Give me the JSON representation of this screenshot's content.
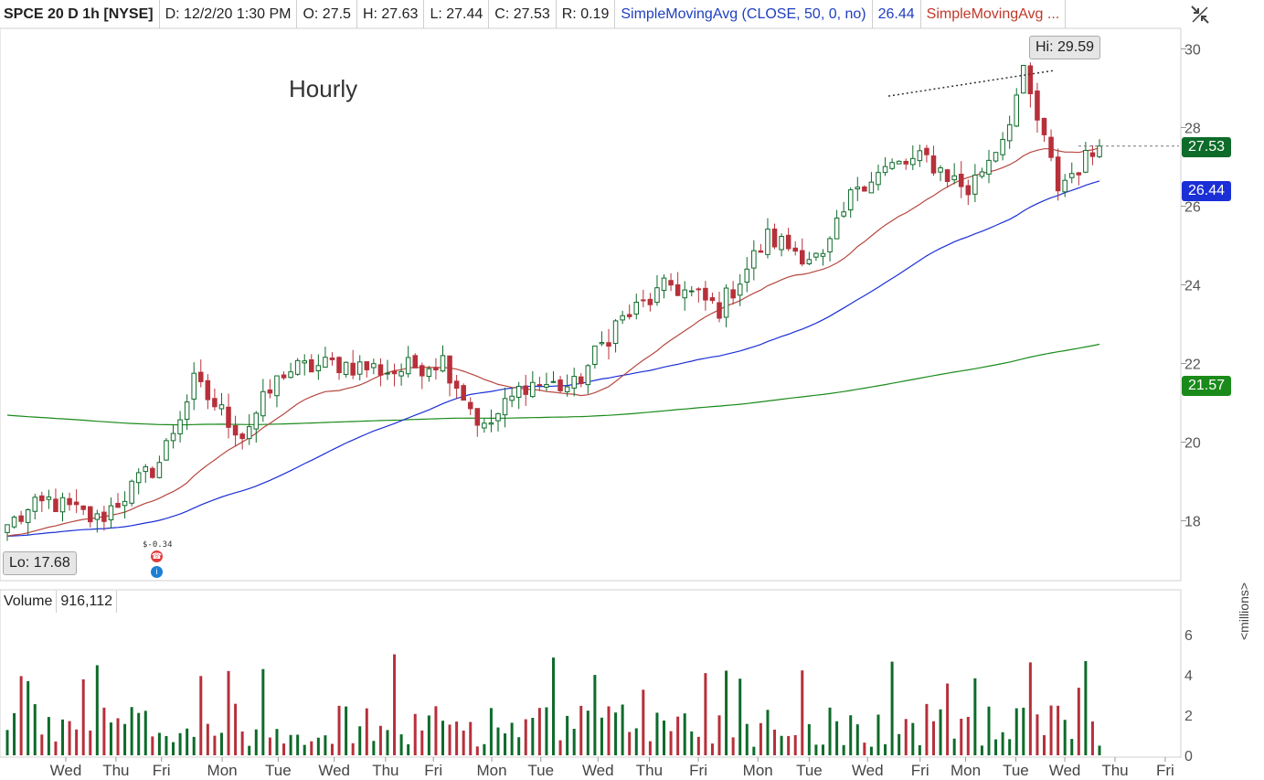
{
  "header": {
    "symbol": "SPCE 20 D 1h [NYSE]",
    "date": "D: 12/2/20 1:30 PM",
    "open": "O: 27.5",
    "high": "H: 27.63",
    "low": "L: 27.44",
    "close": "C: 27.53",
    "range": "R: 0.19",
    "sma1_label": "SimpleMovingAvg (CLOSE, 50, 0, no)",
    "sma1_value": "26.44",
    "sma2_label": "SimpleMovingAvg ..."
  },
  "annotation": "Hourly",
  "lo_label": "Lo: 17.68",
  "hi_label": "Hi: 29.59",
  "price_badge": "27.53",
  "sma50_badge": "26.44",
  "sma200_badge": "21.57",
  "earnings_label": "$-0.34",
  "volume": {
    "label": "Volume",
    "value": "916,112",
    "unit": "<millions>"
  },
  "colors": {
    "up": "#0e6b2a",
    "down": "#b7303a",
    "sma20": "#b5483f",
    "sma50": "#1b2fd6",
    "sma200": "#1a8a1a"
  },
  "icons": [
    "settings-icon",
    "earnings-icon",
    "dividend-icon"
  ],
  "chart_data": {
    "type": "candlestick",
    "price_axis": {
      "ticks": [
        18,
        20,
        22,
        24,
        26,
        28,
        30
      ],
      "ylim": [
        16.5,
        30.5
      ]
    },
    "volume_axis": {
      "ticks": [
        0,
        2,
        4,
        6
      ],
      "ylim": [
        0,
        7
      ]
    },
    "x_ticks": [
      "Wed",
      "Thu",
      "Fri",
      "Mon",
      "Tue",
      "Wed",
      "Thu",
      "Fri",
      "Mon",
      "Tue",
      "Wed",
      "Thu",
      "Fri",
      "Mon",
      "Tue",
      "Wed",
      "Fri",
      "Mon",
      "Tue",
      "Wed",
      "Thu",
      "Fri"
    ],
    "x_tick_pos": [
      5.4,
      9.7,
      13.6,
      18.8,
      23.6,
      28.4,
      32.8,
      36.9,
      41.9,
      46.1,
      51.0,
      55.4,
      59.6,
      64.7,
      69.1,
      74.1,
      78.6,
      82.5,
      86.8,
      91.0,
      95.3,
      99.6
    ],
    "anchors": [
      {
        "i": 0,
        "close": 17.9
      },
      {
        "i": 6,
        "close": 18.5
      },
      {
        "i": 13,
        "close": 18.0
      },
      {
        "i": 22,
        "close": 19.5
      },
      {
        "i": 27,
        "close": 21.5
      },
      {
        "i": 34,
        "close": 20.2
      },
      {
        "i": 40,
        "close": 21.8
      },
      {
        "i": 48,
        "close": 22.0
      },
      {
        "i": 56,
        "close": 21.8
      },
      {
        "i": 63,
        "close": 22.1
      },
      {
        "i": 69,
        "close": 20.3
      },
      {
        "i": 75,
        "close": 21.5
      },
      {
        "i": 82,
        "close": 21.4
      },
      {
        "i": 88,
        "close": 23.0
      },
      {
        "i": 96,
        "close": 24.0
      },
      {
        "i": 103,
        "close": 23.4
      },
      {
        "i": 110,
        "close": 25.2
      },
      {
        "i": 118,
        "close": 24.6
      },
      {
        "i": 123,
        "close": 26.6
      },
      {
        "i": 128,
        "close": 27.0
      },
      {
        "i": 133,
        "close": 27.2
      },
      {
        "i": 139,
        "close": 26.4
      },
      {
        "i": 144,
        "close": 27.8
      },
      {
        "i": 147,
        "close": 29.3
      },
      {
        "i": 152,
        "close": 26.5
      },
      {
        "i": 158,
        "close": 27.53
      }
    ],
    "bars": 159
  }
}
